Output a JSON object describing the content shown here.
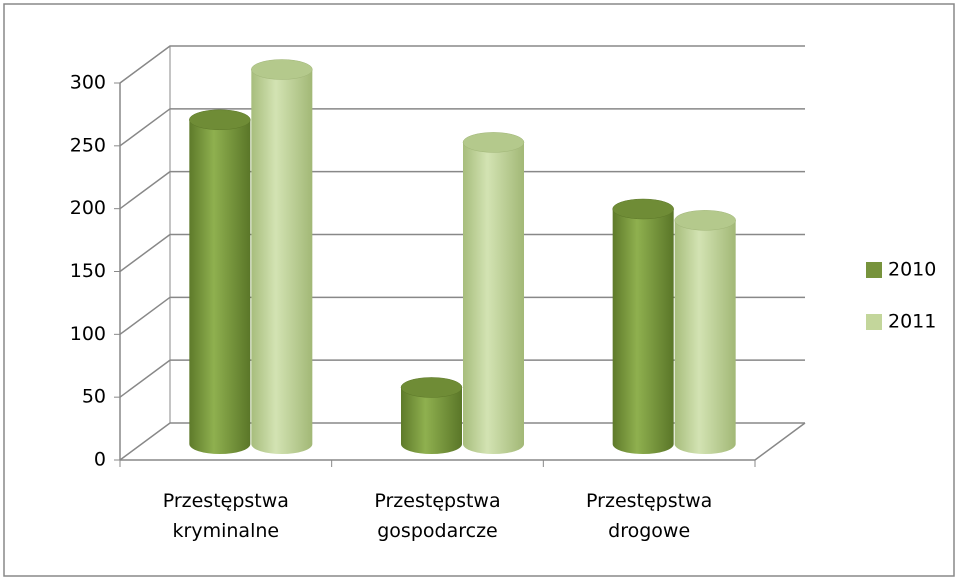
{
  "chart_data": {
    "type": "bar3d",
    "categories": [
      "Przestępstwa kryminalne",
      "Przestępstwa gospodarcze",
      "Przestępstwa drogowe"
    ],
    "series": [
      {
        "name": "2010",
        "color": "#77933c",
        "values": [
          258,
          45,
          187
        ]
      },
      {
        "name": "2011",
        "color": "#c3d69b",
        "values": [
          298,
          240,
          178
        ]
      }
    ],
    "ylim": [
      0,
      300
    ],
    "yticks": [
      0,
      50,
      100,
      150,
      200,
      250,
      300
    ],
    "grid": true,
    "legend": "right"
  }
}
